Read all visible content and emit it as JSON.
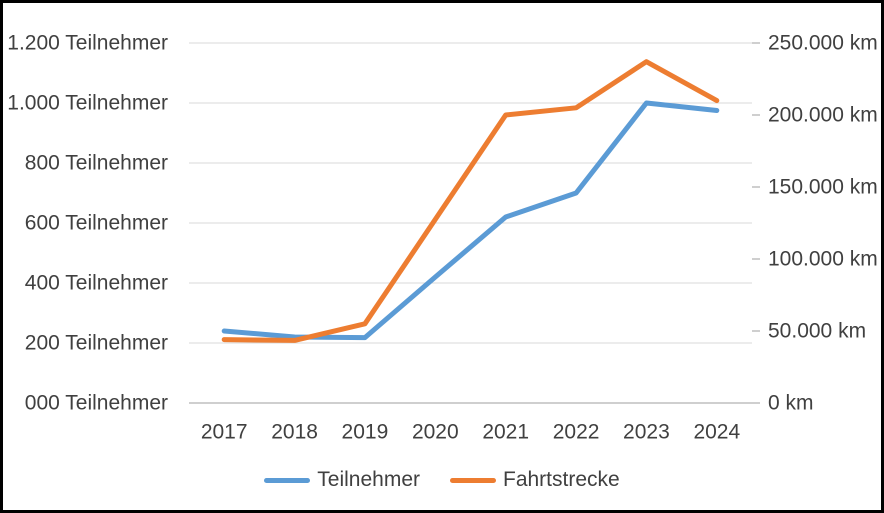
{
  "chart_data": {
    "type": "line",
    "title": "",
    "categories": [
      "2017",
      "2018",
      "2019",
      "2020",
      "2021",
      "2022",
      "2023",
      "2024"
    ],
    "series": [
      {
        "name": "Teilnehmer",
        "axis": "left",
        "color": "#5B9BD5",
        "values": [
          240,
          220,
          218,
          420,
          620,
          700,
          1000,
          975
        ]
      },
      {
        "name": "Fahrtstrecke",
        "axis": "right",
        "color": "#ED7D31",
        "values": [
          44000,
          43500,
          55000,
          127500,
          200000,
          205000,
          237000,
          210000
        ]
      }
    ],
    "left_axis": {
      "min": 0,
      "max": 1200,
      "step": 200,
      "labels": [
        "1.200 Teilnehmer",
        "1.000 Teilnehmer",
        "800 Teilnehmer",
        "600 Teilnehmer",
        "400 Teilnehmer",
        "200 Teilnehmer",
        "000 Teilnehmer"
      ]
    },
    "right_axis": {
      "min": 0,
      "max": 250000,
      "step": 50000,
      "labels": [
        "250.000 km",
        "200.000 km",
        "150.000 km",
        "100.000 km",
        "50.000 km",
        "0 km"
      ]
    },
    "grid": "horizontal",
    "legend_position": "bottom",
    "colors": {
      "gridline": "#D9D9D9",
      "axis_line": "#BFBFBF",
      "tick": "#BFBFBF",
      "text": "#404040",
      "border": "#000000",
      "background": "#FFFFFF"
    }
  }
}
